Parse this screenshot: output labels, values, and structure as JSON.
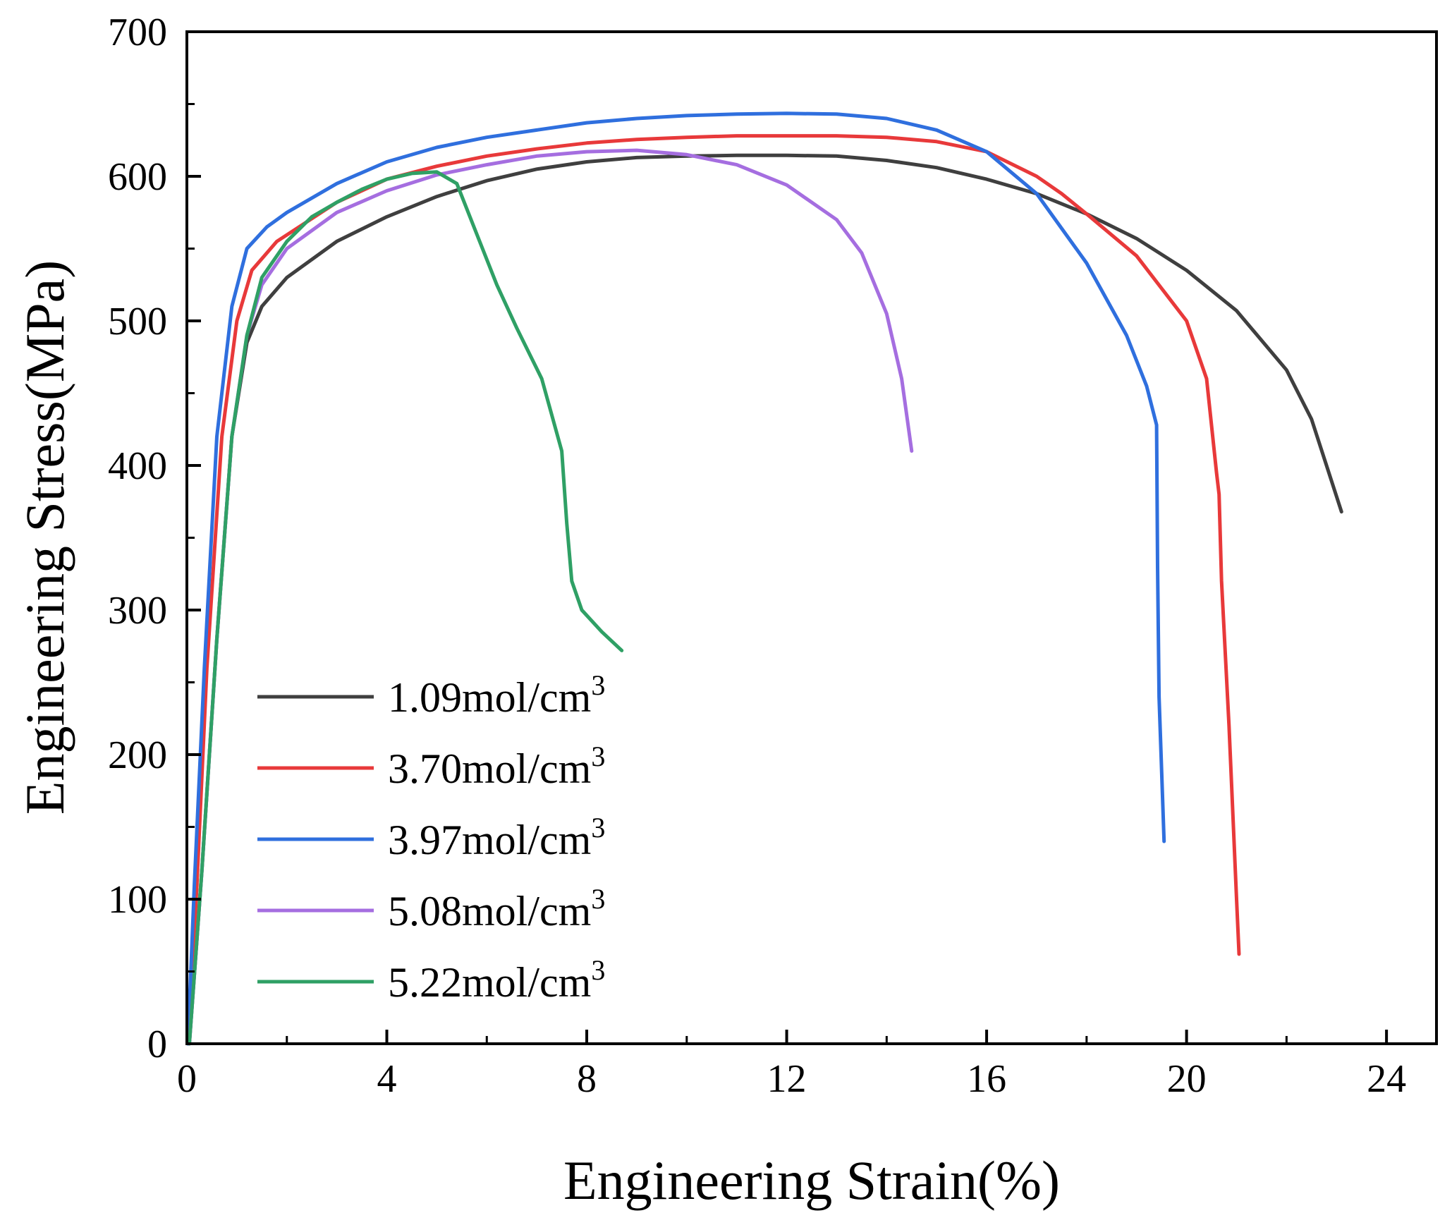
{
  "chart_data": {
    "type": "line",
    "xlabel": "Engineering Strain(%)",
    "ylabel": "Engineering Stress(MPa)",
    "xlim": [
      0,
      25
    ],
    "ylim": [
      0,
      700
    ],
    "xticks": [
      0,
      4,
      8,
      12,
      16,
      20,
      24
    ],
    "yticks": [
      0,
      100,
      200,
      300,
      400,
      500,
      600,
      700
    ],
    "x_minor_step": 2,
    "y_minor_step": 50,
    "grid": false,
    "legend_position": "bottom-left",
    "series": [
      {
        "name": "1.09mol/cm",
        "superscript": "3",
        "color": "#3f3f3f",
        "points": [
          [
            0.05,
            0
          ],
          [
            0.3,
            120
          ],
          [
            0.6,
            280
          ],
          [
            0.9,
            420
          ],
          [
            1.2,
            485
          ],
          [
            1.5,
            510
          ],
          [
            2,
            530
          ],
          [
            3,
            555
          ],
          [
            4,
            572
          ],
          [
            5,
            586
          ],
          [
            6,
            597
          ],
          [
            7,
            605
          ],
          [
            8,
            610
          ],
          [
            9,
            613
          ],
          [
            10,
            614
          ],
          [
            11,
            614.5
          ],
          [
            12,
            614.5
          ],
          [
            13,
            614
          ],
          [
            14,
            611
          ],
          [
            15,
            606
          ],
          [
            16,
            598
          ],
          [
            17,
            588
          ],
          [
            18,
            574
          ],
          [
            19,
            557
          ],
          [
            20,
            535
          ],
          [
            21,
            507
          ],
          [
            22,
            466
          ],
          [
            22.5,
            432
          ],
          [
            23.1,
            368
          ]
        ]
      },
      {
        "name": "3.70mol/cm",
        "superscript": "3",
        "color": "#e8393a",
        "points": [
          [
            0.03,
            0
          ],
          [
            0.2,
            110
          ],
          [
            0.4,
            260
          ],
          [
            0.7,
            420
          ],
          [
            1,
            500
          ],
          [
            1.3,
            535
          ],
          [
            1.8,
            555
          ],
          [
            3,
            582
          ],
          [
            4,
            598
          ],
          [
            5,
            607
          ],
          [
            6,
            614
          ],
          [
            7,
            619
          ],
          [
            8,
            623
          ],
          [
            9,
            625.5
          ],
          [
            10,
            627
          ],
          [
            11,
            628
          ],
          [
            12,
            628
          ],
          [
            13,
            628
          ],
          [
            14,
            627
          ],
          [
            15,
            624
          ],
          [
            16,
            617
          ],
          [
            17,
            600
          ],
          [
            17.5,
            588
          ],
          [
            18,
            574
          ],
          [
            19,
            545
          ],
          [
            20,
            500
          ],
          [
            20.4,
            460
          ],
          [
            20.6,
            395
          ],
          [
            20.65,
            380
          ],
          [
            20.7,
            320
          ],
          [
            20.85,
            220
          ],
          [
            21,
            100
          ],
          [
            21.05,
            62
          ]
        ]
      },
      {
        "name": "3.97mol/cm",
        "superscript": "3",
        "color": "#2f6fde",
        "points": [
          [
            0.02,
            0
          ],
          [
            0.15,
            110
          ],
          [
            0.35,
            260
          ],
          [
            0.6,
            420
          ],
          [
            0.9,
            510
          ],
          [
            1.2,
            550
          ],
          [
            1.6,
            565
          ],
          [
            2,
            575
          ],
          [
            3,
            595
          ],
          [
            4,
            610
          ],
          [
            5,
            620
          ],
          [
            6,
            627
          ],
          [
            7,
            632
          ],
          [
            8,
            637
          ],
          [
            9,
            640
          ],
          [
            10,
            642
          ],
          [
            11,
            643
          ],
          [
            12,
            643.5
          ],
          [
            13,
            643
          ],
          [
            14,
            640
          ],
          [
            15,
            632
          ],
          [
            16,
            617
          ],
          [
            17,
            588
          ],
          [
            18,
            540
          ],
          [
            18.8,
            490
          ],
          [
            19.2,
            455
          ],
          [
            19.4,
            428
          ],
          [
            19.42,
            330
          ],
          [
            19.45,
            240
          ],
          [
            19.55,
            140
          ]
        ]
      },
      {
        "name": "5.08mol/cm",
        "superscript": "3",
        "color": "#a56ee0",
        "points": [
          [
            0.05,
            0
          ],
          [
            0.3,
            120
          ],
          [
            0.6,
            280
          ],
          [
            0.9,
            420
          ],
          [
            1.2,
            490
          ],
          [
            1.5,
            525
          ],
          [
            2,
            550
          ],
          [
            3,
            575
          ],
          [
            4,
            590
          ],
          [
            5,
            601
          ],
          [
            6,
            608
          ],
          [
            7,
            614
          ],
          [
            8,
            617
          ],
          [
            9,
            618
          ],
          [
            10,
            615
          ],
          [
            11,
            608
          ],
          [
            12,
            594
          ],
          [
            13,
            570
          ],
          [
            13.5,
            547
          ],
          [
            14,
            505
          ],
          [
            14.3,
            460
          ],
          [
            14.5,
            410
          ]
        ]
      },
      {
        "name": "5.22mol/cm",
        "superscript": "3",
        "color": "#2fa065",
        "points": [
          [
            0.05,
            0
          ],
          [
            0.3,
            120
          ],
          [
            0.6,
            280
          ],
          [
            0.9,
            420
          ],
          [
            1.2,
            490
          ],
          [
            1.5,
            530
          ],
          [
            2,
            555
          ],
          [
            2.5,
            572
          ],
          [
            3,
            582
          ],
          [
            3.5,
            591
          ],
          [
            4,
            598
          ],
          [
            4.5,
            602
          ],
          [
            5,
            603
          ],
          [
            5.4,
            595
          ],
          [
            5.8,
            560
          ],
          [
            6.2,
            525
          ],
          [
            6.6,
            495
          ],
          [
            7.1,
            460
          ],
          [
            7.5,
            410
          ],
          [
            7.6,
            360
          ],
          [
            7.7,
            320
          ],
          [
            7.9,
            300
          ],
          [
            8.3,
            285
          ],
          [
            8.7,
            272
          ]
        ]
      }
    ]
  }
}
